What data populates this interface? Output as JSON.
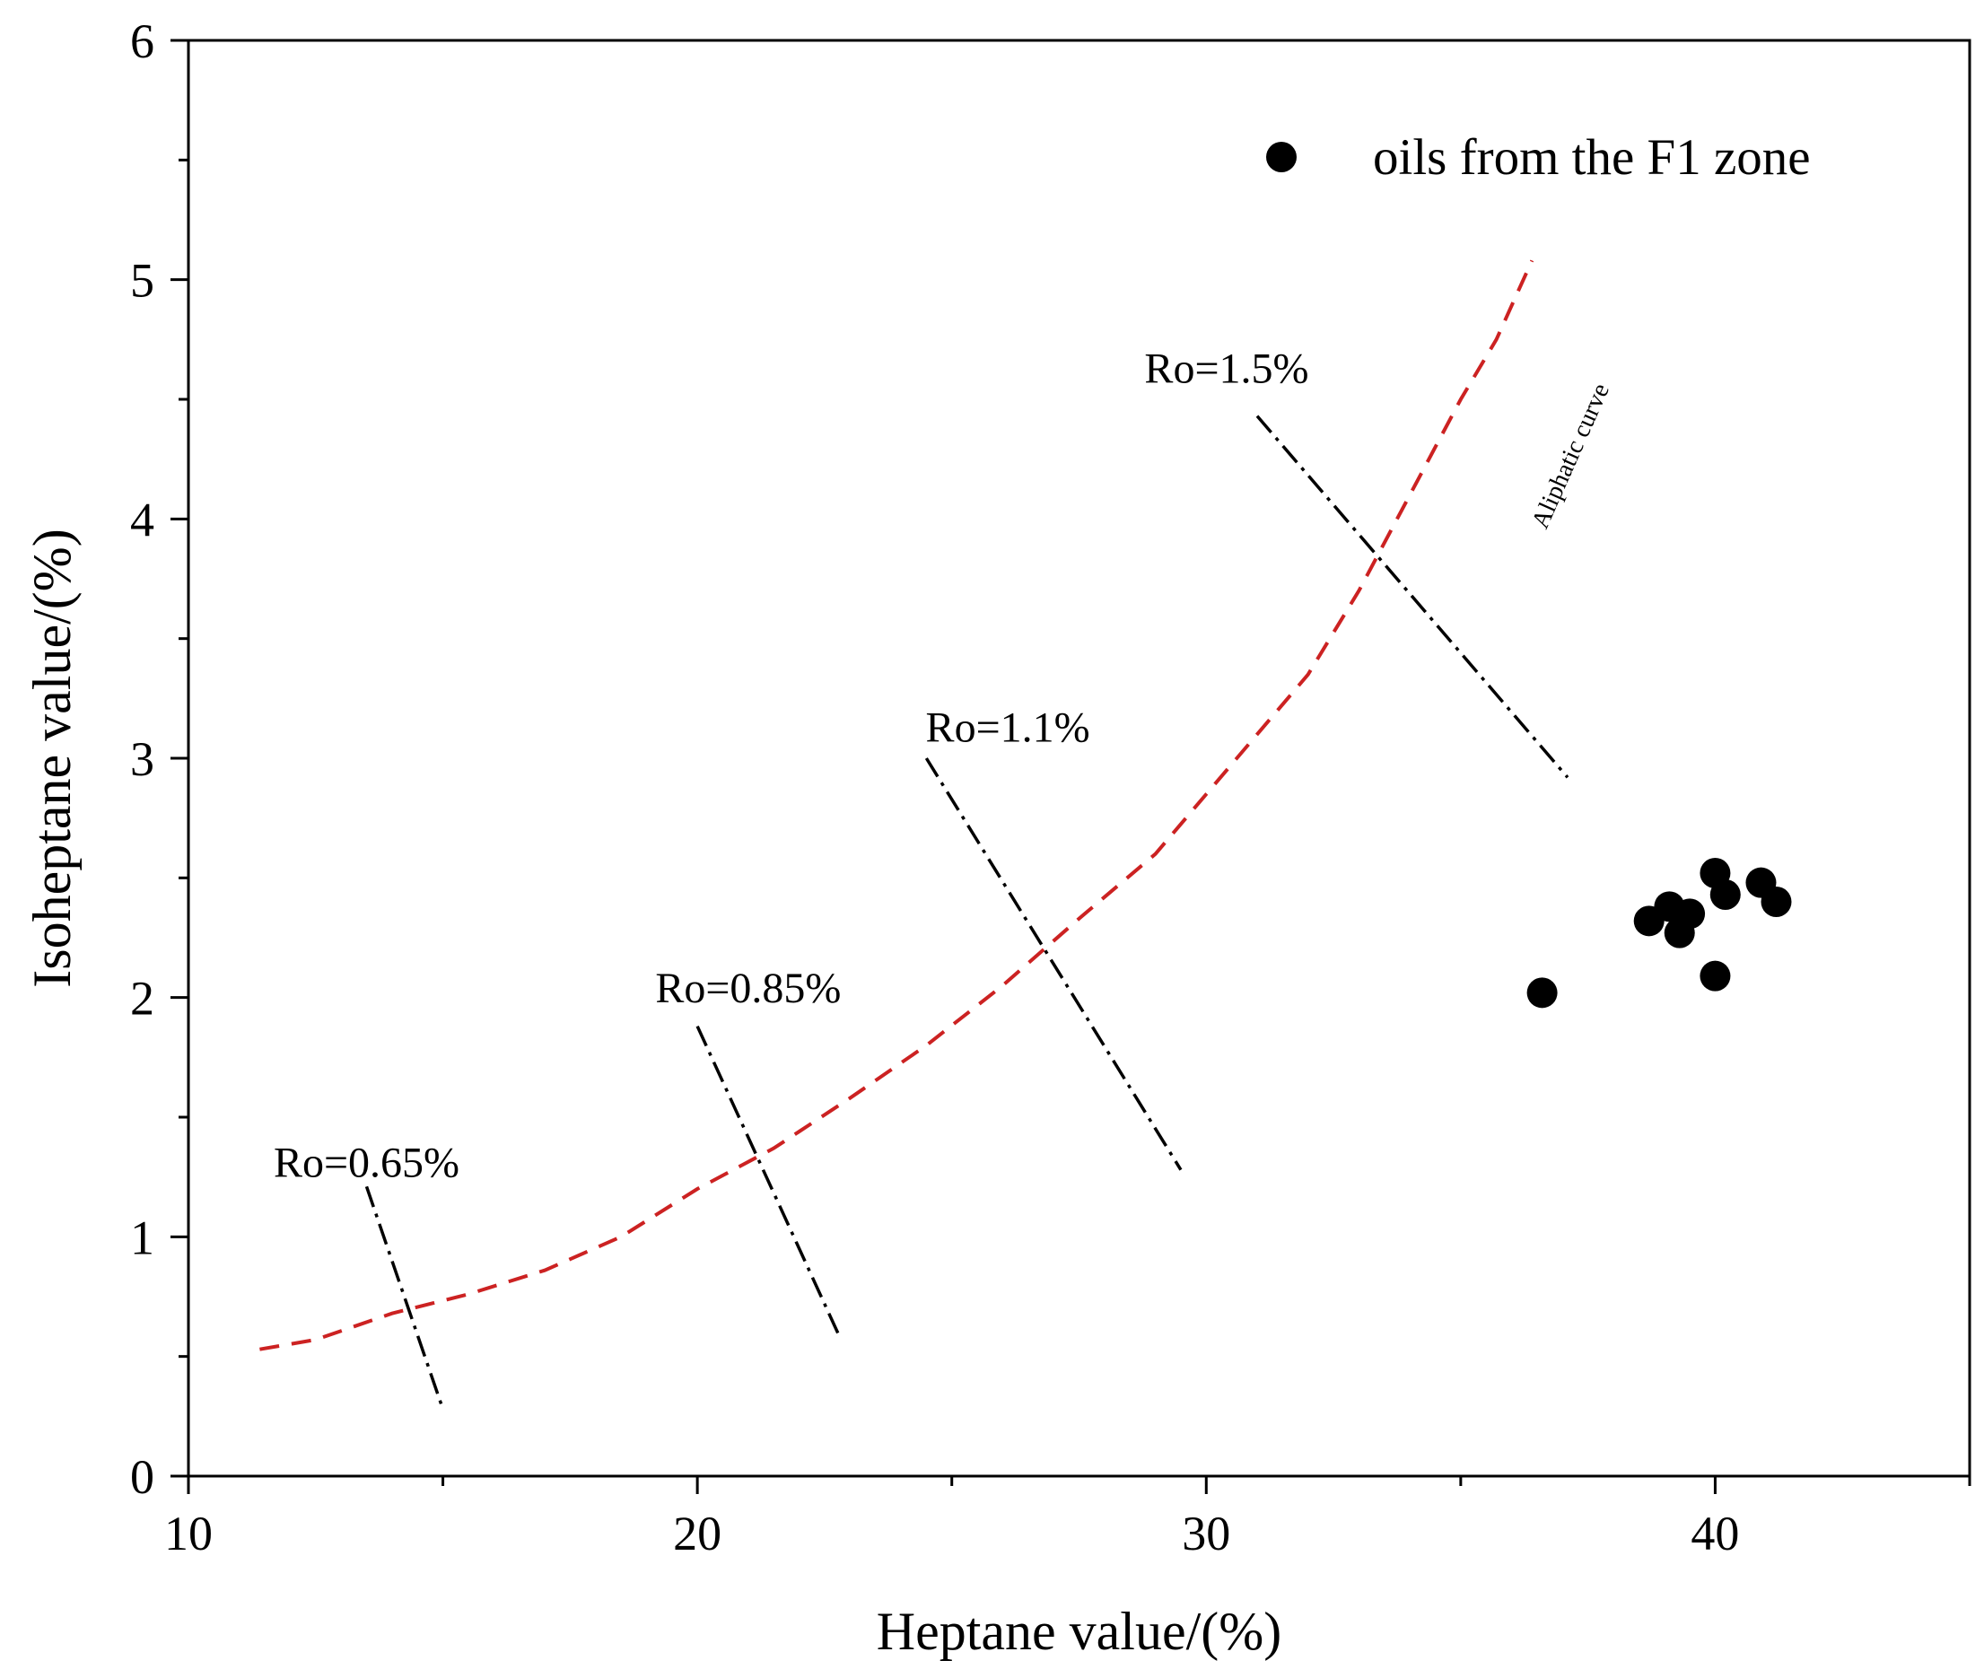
{
  "chart_data": {
    "type": "scatter",
    "xlabel": "Heptane value/(%)",
    "ylabel": "Isoheptane value/(%)",
    "xlim": [
      10,
      45
    ],
    "ylim": [
      0,
      6
    ],
    "x_ticks": [
      10,
      20,
      30,
      40
    ],
    "y_ticks": [
      0,
      1,
      2,
      3,
      4,
      5,
      6
    ],
    "grid": false,
    "legend_position": "top-right",
    "series": [
      {
        "name": "oils from the F1 zone",
        "marker": "filled-circle",
        "color": "#000000",
        "points": [
          {
            "x": 36.6,
            "y": 2.02
          },
          {
            "x": 38.7,
            "y": 2.32
          },
          {
            "x": 39.1,
            "y": 2.38
          },
          {
            "x": 39.3,
            "y": 2.27
          },
          {
            "x": 39.5,
            "y": 2.35
          },
          {
            "x": 40.0,
            "y": 2.52
          },
          {
            "x": 40.2,
            "y": 2.43
          },
          {
            "x": 40.9,
            "y": 2.48
          },
          {
            "x": 41.2,
            "y": 2.4
          },
          {
            "x": 40.0,
            "y": 2.09
          }
        ]
      }
    ],
    "curve": {
      "name": "Aliphatic curve",
      "color": "#cc2222",
      "style": "dashed",
      "points": [
        {
          "x": 11.4,
          "y": 0.53
        },
        {
          "x": 12.5,
          "y": 0.57
        },
        {
          "x": 14.0,
          "y": 0.68
        },
        {
          "x": 15.5,
          "y": 0.76
        },
        {
          "x": 17.0,
          "y": 0.86
        },
        {
          "x": 18.5,
          "y": 1.0
        },
        {
          "x": 20.0,
          "y": 1.2
        },
        {
          "x": 21.5,
          "y": 1.37
        },
        {
          "x": 23.0,
          "y": 1.58
        },
        {
          "x": 24.5,
          "y": 1.8
        },
        {
          "x": 26.0,
          "y": 2.05
        },
        {
          "x": 27.5,
          "y": 2.33
        },
        {
          "x": 29.0,
          "y": 2.6
        },
        {
          "x": 30.0,
          "y": 2.85
        },
        {
          "x": 31.0,
          "y": 3.1
        },
        {
          "x": 32.0,
          "y": 3.35
        },
        {
          "x": 33.0,
          "y": 3.7
        },
        {
          "x": 34.0,
          "y": 4.1
        },
        {
          "x": 35.0,
          "y": 4.5
        },
        {
          "x": 35.7,
          "y": 4.75
        },
        {
          "x": 36.4,
          "y": 5.08
        }
      ]
    },
    "maturity_lines": [
      {
        "label": "Ro=0.65%",
        "x1": 13.5,
        "y1": 1.21,
        "x2": 15.0,
        "y2": 0.28
      },
      {
        "label": "Ro=0.85%",
        "x1": 20.0,
        "y1": 1.88,
        "x2": 22.8,
        "y2": 0.58
      },
      {
        "label": "Ro=1.1%",
        "x1": 24.5,
        "y1": 3.0,
        "x2": 29.5,
        "y2": 1.28
      },
      {
        "label": "Ro=1.5%",
        "x1": 31.0,
        "y1": 4.43,
        "x2": 37.1,
        "y2": 2.92
      }
    ],
    "annotations": [
      {
        "text": "Ro=0.65%",
        "x": 13.5,
        "y": 1.25
      },
      {
        "text": "Ro=0.85%",
        "x": 21.0,
        "y": 1.98
      },
      {
        "text": "Ro=1.1%",
        "x": 26.1,
        "y": 3.07
      },
      {
        "text": "Ro=1.5%",
        "x": 30.4,
        "y": 4.57
      },
      {
        "text": "Aliphatic curve",
        "x": 37.3,
        "y": 4.25
      }
    ]
  }
}
